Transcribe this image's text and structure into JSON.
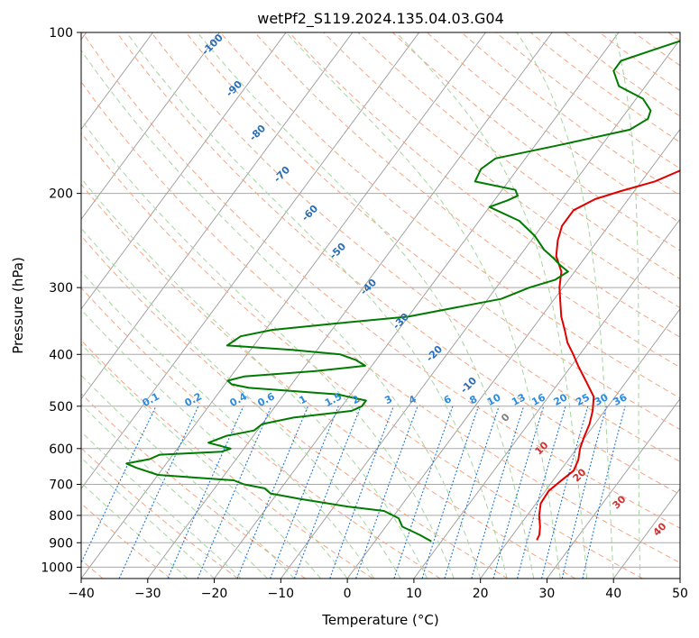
{
  "chart_data": {
    "type": "line",
    "title": "wetPf2_S119.2024.135.04.03.G04",
    "xlabel": "Temperature (°C)",
    "ylabel": "Pressure (hPa)",
    "xlim": [
      -40,
      50
    ],
    "ylim": [
      1050,
      100
    ],
    "y_scale": "log",
    "grid": true,
    "x_ticks": [
      "−40",
      "−30",
      "−20",
      "−10",
      "0",
      "10",
      "20",
      "30",
      "40",
      "50"
    ],
    "y_ticks": [
      "100",
      "200",
      "300",
      "400",
      "500",
      "600",
      "700",
      "800",
      "900",
      "1000"
    ],
    "colors": {
      "temperature": "#e00000",
      "dewpoint": "#007a00",
      "dry_adiabat": "#f4a582",
      "moist_adiabat": "#a6d5a0",
      "mixing_ratio": "#1f77d4",
      "isotherm": "#9a9a9a",
      "isobar": "#a8a8a8"
    },
    "series": [
      {
        "key": "temperature",
        "p": [
          890,
          870,
          840,
          800,
          760,
          720,
          690,
          660,
          630,
          600,
          570,
          540,
          510,
          480,
          450,
          420,
          400,
          380,
          360,
          340,
          320,
          300,
          280,
          262,
          245,
          230,
          215,
          205,
          198,
          190,
          180,
          172,
          165,
          158,
          150,
          140,
          130,
          120,
          110,
          100
        ],
        "t": [
          24.2,
          24.0,
          23.2,
          21.8,
          20.7,
          20.5,
          21.2,
          22.0,
          21.5,
          20.5,
          19.8,
          19.2,
          18.2,
          16.8,
          14.0,
          11.0,
          9.0,
          6.8,
          5.0,
          3.0,
          1.3,
          -0.5,
          -2.0,
          -4.5,
          -6.0,
          -7.0,
          -7.0,
          -5.0,
          -2.0,
          2.0,
          5.0,
          6.5,
          7.0,
          7.0,
          7.8,
          8.2,
          8.0,
          7.6,
          7.8,
          8.3
        ]
      },
      {
        "key": "dewpoint",
        "p": [
          895,
          870,
          840,
          810,
          785,
          770,
          745,
          728,
          712,
          700,
          688,
          672,
          652,
          640,
          628,
          616,
          608,
          600,
          585,
          568,
          555,
          540,
          525,
          510,
          500,
          488,
          475,
          462,
          455,
          448,
          440,
          430,
          420,
          410,
          400,
          392,
          385,
          370,
          360,
          350,
          340,
          325,
          315,
          300,
          290,
          280,
          272,
          265,
          255,
          240,
          225,
          212,
          206,
          202,
          197,
          190,
          180,
          172,
          162,
          152,
          145,
          140,
          133,
          126,
          118,
          113,
          108,
          104,
          100
        ],
        "td": [
          8.5,
          6.0,
          2.5,
          1.0,
          -2.0,
          -8.0,
          -16.0,
          -21.0,
          -22.5,
          -26.0,
          -28.0,
          -40.0,
          -44.0,
          -46.0,
          -43.0,
          -42.0,
          -33.0,
          -32.0,
          -36.0,
          -34.0,
          -30.5,
          -30.0,
          -26.0,
          -18.0,
          -17.0,
          -17.0,
          -22.0,
          -36.0,
          -39.0,
          -40.0,
          -38.0,
          -28.0,
          -21.0,
          -23.0,
          -26.0,
          -34.0,
          -44.0,
          -43.0,
          -39.0,
          -30.0,
          -20.0,
          -13.0,
          -8.0,
          -5.0,
          -2.0,
          -1.0,
          -3.0,
          -4.5,
          -7.0,
          -10.0,
          -14.0,
          -20.0,
          -18.0,
          -17.0,
          -18.0,
          -25.0,
          -25.5,
          -24.5,
          -16.0,
          -7.5,
          -6.0,
          -6.5,
          -9.0,
          -14.0,
          -16.5,
          -16.5,
          -13.0,
          -10.0,
          -6.0
        ]
      }
    ],
    "dry_adiabat_labels": [
      "0",
      "10",
      "20",
      "30",
      "40"
    ],
    "moist_adiabat_labels": [
      "-100",
      "-90",
      "-80",
      "-70",
      "-60",
      "-50",
      "-40",
      "-30",
      "-20",
      "-10"
    ],
    "mixing_ratio_labels": [
      "0.1",
      "0.2",
      "0.4",
      "0.6",
      "1",
      "1.5",
      "2",
      "3",
      "4",
      "6",
      "8",
      "10",
      "13",
      "16",
      "20",
      "25",
      "30",
      "36"
    ]
  }
}
